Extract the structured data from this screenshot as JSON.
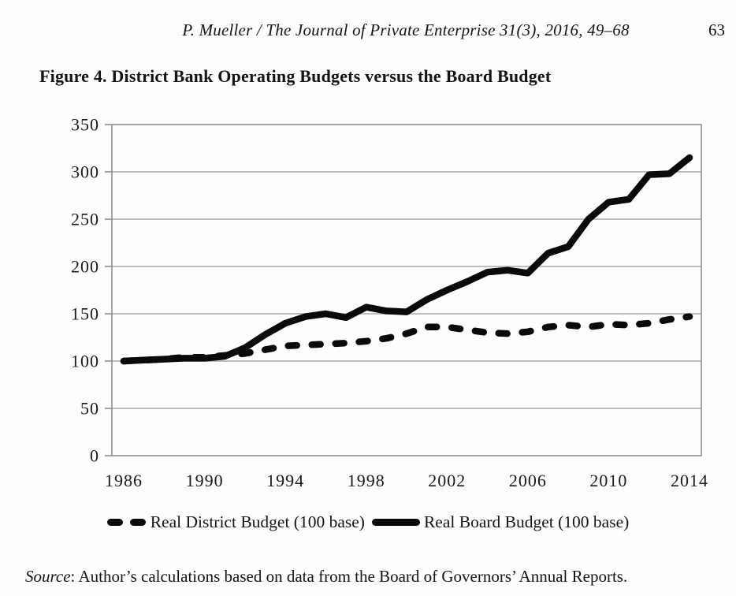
{
  "page": {
    "running_head": "P. Mueller /  The Journal of Private Enterprise 31(3), 2016, 49–68",
    "page_number": "63",
    "figure_caption": "Figure 4. District Bank Operating Budgets versus the Board Budget",
    "source_label": "Source",
    "source_text": ": Author’s calculations based on data from the Board of Governors’ Annual Reports."
  },
  "chart_data": {
    "type": "line",
    "title": "",
    "xlabel": "",
    "ylabel": "",
    "x": [
      1986,
      1987,
      1988,
      1989,
      1990,
      1991,
      1992,
      1993,
      1994,
      1995,
      1996,
      1997,
      1998,
      1999,
      2000,
      2001,
      2002,
      2003,
      2004,
      2005,
      2006,
      2007,
      2008,
      2009,
      2010,
      2011,
      2012,
      2013,
      2014
    ],
    "series": [
      {
        "name": "Real District Budget (100 base)",
        "style": "dashed",
        "values": [
          100,
          101,
          102,
          104,
          104,
          106,
          108,
          112,
          116,
          117,
          118,
          119,
          121,
          124,
          129,
          136,
          136,
          133,
          130,
          129,
          131,
          136,
          138,
          136,
          139,
          138,
          140,
          144,
          147
        ]
      },
      {
        "name": "Real Board Budget (100 base)",
        "style": "solid",
        "values": [
          100,
          101,
          102,
          103,
          103,
          105,
          114,
          128,
          140,
          147,
          150,
          146,
          157,
          153,
          152,
          165,
          175,
          184,
          194,
          196,
          193,
          214,
          221,
          250,
          268,
          271,
          297,
          298,
          315
        ]
      }
    ],
    "xticks": [
      1986,
      1990,
      1994,
      1998,
      2002,
      2006,
      2010,
      2014
    ],
    "yticks": [
      0,
      50,
      100,
      150,
      200,
      250,
      300,
      350
    ],
    "ylim": [
      0,
      350
    ],
    "grid": "horizontal",
    "legend_position": "bottom",
    "colors": {
      "line": "#0a0a0a",
      "grid": "#a9a9a9",
      "frame": "#8f8f8f"
    }
  }
}
